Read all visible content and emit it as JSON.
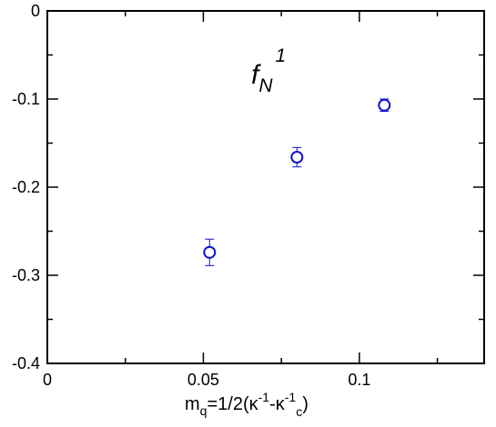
{
  "chart_data": {
    "type": "scatter",
    "title": "",
    "xlabel_parts": [
      "m",
      "q",
      "=1/2(κ",
      "-1",
      "-κ",
      "-1",
      "c",
      ")"
    ],
    "ylabel": "",
    "xlim": [
      0,
      0.14
    ],
    "ylim": [
      -0.4,
      0
    ],
    "x_ticks": [
      0,
      0.05,
      0.1
    ],
    "x_tick_labels": [
      "0",
      "0.05",
      "0.1"
    ],
    "y_ticks": [
      0,
      -0.1,
      -0.2,
      -0.3,
      -0.4
    ],
    "y_tick_labels": [
      "0",
      "-0.1",
      "-0.2",
      "-0.3",
      "-0.4"
    ],
    "annotation": {
      "base": "f",
      "sub": "N",
      "sup": "1"
    },
    "grid": false,
    "series": [
      {
        "color": "#1010d0",
        "marker": "open-circle",
        "points": [
          {
            "x": 0.052,
            "y": -0.274,
            "err": 0.015
          },
          {
            "x": 0.08,
            "y": -0.166,
            "err": 0.011
          },
          {
            "x": 0.108,
            "y": -0.107,
            "err": 0.007
          }
        ]
      }
    ]
  }
}
